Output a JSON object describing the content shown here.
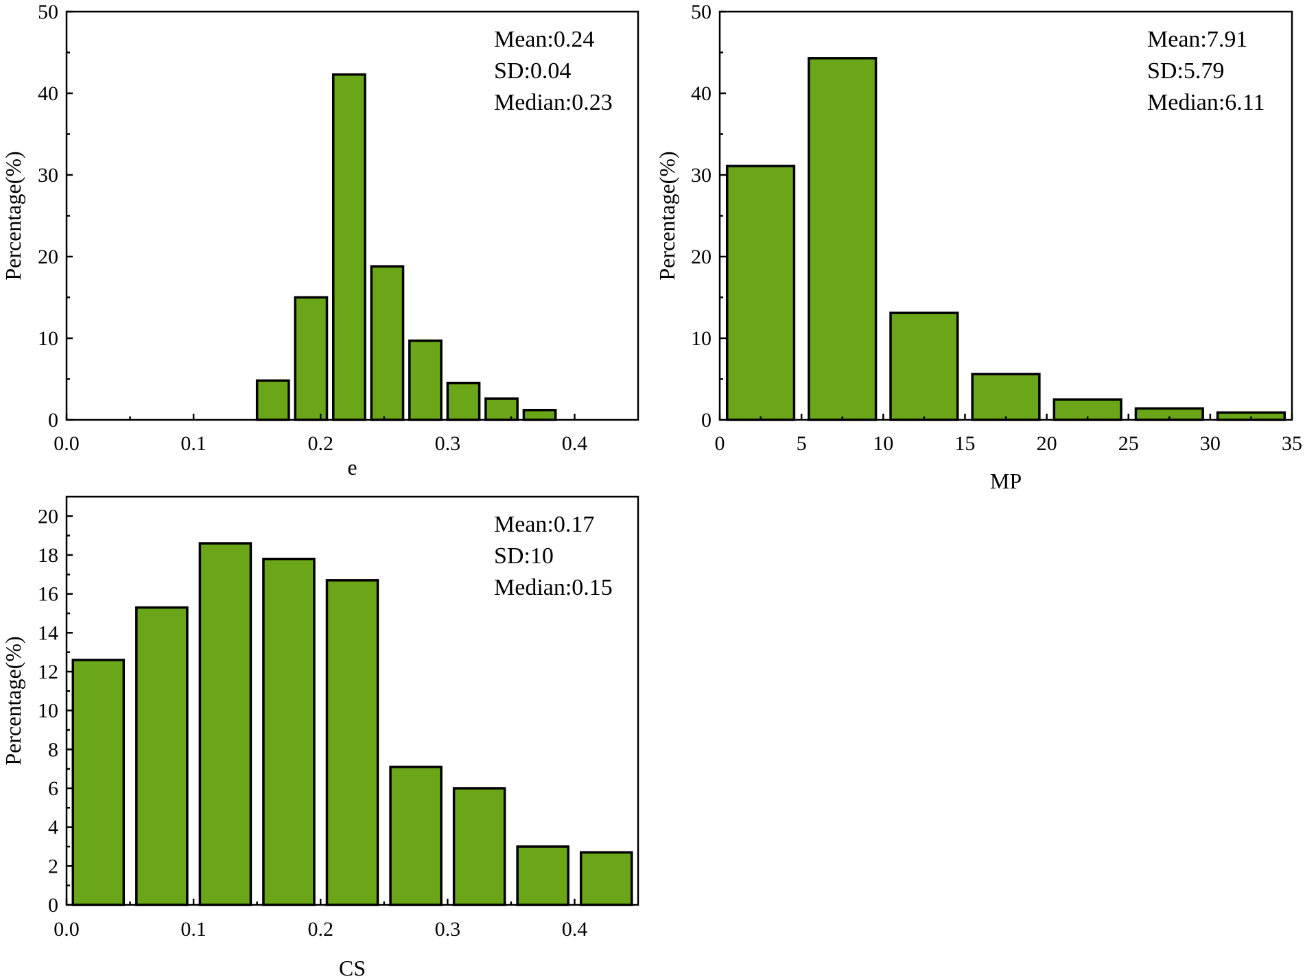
{
  "colors": {
    "bar_fill": "#6aa617",
    "bar_stroke": "#000000",
    "axis": "#000000"
  },
  "chart_data": [
    {
      "id": "e",
      "type": "bar",
      "xlabel": "e",
      "ylabel": "Percentage(%)",
      "xlim": [
        0,
        0.45
      ],
      "ylim": [
        0,
        50
      ],
      "xticks": [
        0.0,
        0.1,
        0.2,
        0.3,
        0.4
      ],
      "xtick_labels": [
        "0.0",
        "0.1",
        "0.2",
        "0.3",
        "0.4"
      ],
      "yticks": [
        0,
        10,
        20,
        30,
        40,
        50
      ],
      "ytick_labels": [
        "0",
        "10",
        "20",
        "30",
        "40",
        "50"
      ],
      "bar_width": 0.025,
      "bars": [
        {
          "x": 0.1625,
          "value": 4.8
        },
        {
          "x": 0.1925,
          "value": 15.0
        },
        {
          "x": 0.2225,
          "value": 42.3
        },
        {
          "x": 0.2525,
          "value": 18.8
        },
        {
          "x": 0.2825,
          "value": 9.7
        },
        {
          "x": 0.3125,
          "value": 4.5
        },
        {
          "x": 0.3425,
          "value": 2.6
        },
        {
          "x": 0.3725,
          "value": 1.2
        }
      ],
      "stats": [
        "Mean:0.24",
        "SD:0.04",
        "Median:0.23"
      ]
    },
    {
      "id": "mp",
      "type": "bar",
      "xlabel": "MP",
      "ylabel": "Percentage(%)",
      "xlim": [
        0,
        35
      ],
      "ylim": [
        0,
        50
      ],
      "xticks": [
        0,
        5,
        10,
        15,
        20,
        25,
        30,
        35
      ],
      "xtick_labels": [
        "0",
        "5",
        "10",
        "15",
        "20",
        "25",
        "30",
        "35"
      ],
      "yticks": [
        0,
        10,
        20,
        30,
        40,
        50
      ],
      "ytick_labels": [
        "0",
        "10",
        "20",
        "30",
        "40",
        "50"
      ],
      "bar_width": 4.1,
      "bars": [
        {
          "x": 2.5,
          "value": 31.1
        },
        {
          "x": 7.5,
          "value": 44.3
        },
        {
          "x": 12.5,
          "value": 13.1
        },
        {
          "x": 17.5,
          "value": 5.6
        },
        {
          "x": 22.5,
          "value": 2.5
        },
        {
          "x": 27.5,
          "value": 1.4
        },
        {
          "x": 32.5,
          "value": 0.9
        }
      ],
      "stats": [
        "Mean:7.91",
        "SD:5.79",
        "Median:6.11"
      ]
    },
    {
      "id": "cs",
      "type": "bar",
      "xlabel": "CS",
      "ylabel": "Percentage(%)",
      "xlim": [
        0,
        0.45
      ],
      "ylim": [
        0,
        21
      ],
      "xticks": [
        0.0,
        0.1,
        0.2,
        0.3,
        0.4
      ],
      "xtick_labels": [
        "0.0",
        "0.1",
        "0.2",
        "0.3",
        "0.4"
      ],
      "yticks": [
        0,
        2,
        4,
        6,
        8,
        10,
        12,
        14,
        16,
        18,
        20
      ],
      "ytick_labels": [
        "0",
        "2",
        "4",
        "6",
        "8",
        "10",
        "12",
        "14",
        "16",
        "18",
        "20"
      ],
      "bar_width": 0.04,
      "bars": [
        {
          "x": 0.025,
          "value": 12.6
        },
        {
          "x": 0.075,
          "value": 15.3
        },
        {
          "x": 0.125,
          "value": 18.6
        },
        {
          "x": 0.175,
          "value": 17.8
        },
        {
          "x": 0.225,
          "value": 16.7
        },
        {
          "x": 0.275,
          "value": 7.1
        },
        {
          "x": 0.325,
          "value": 6.0
        },
        {
          "x": 0.375,
          "value": 3.0
        },
        {
          "x": 0.425,
          "value": 2.7
        }
      ],
      "stats": [
        "Mean:0.17",
        "SD:10",
        "Median:0.15"
      ]
    }
  ]
}
